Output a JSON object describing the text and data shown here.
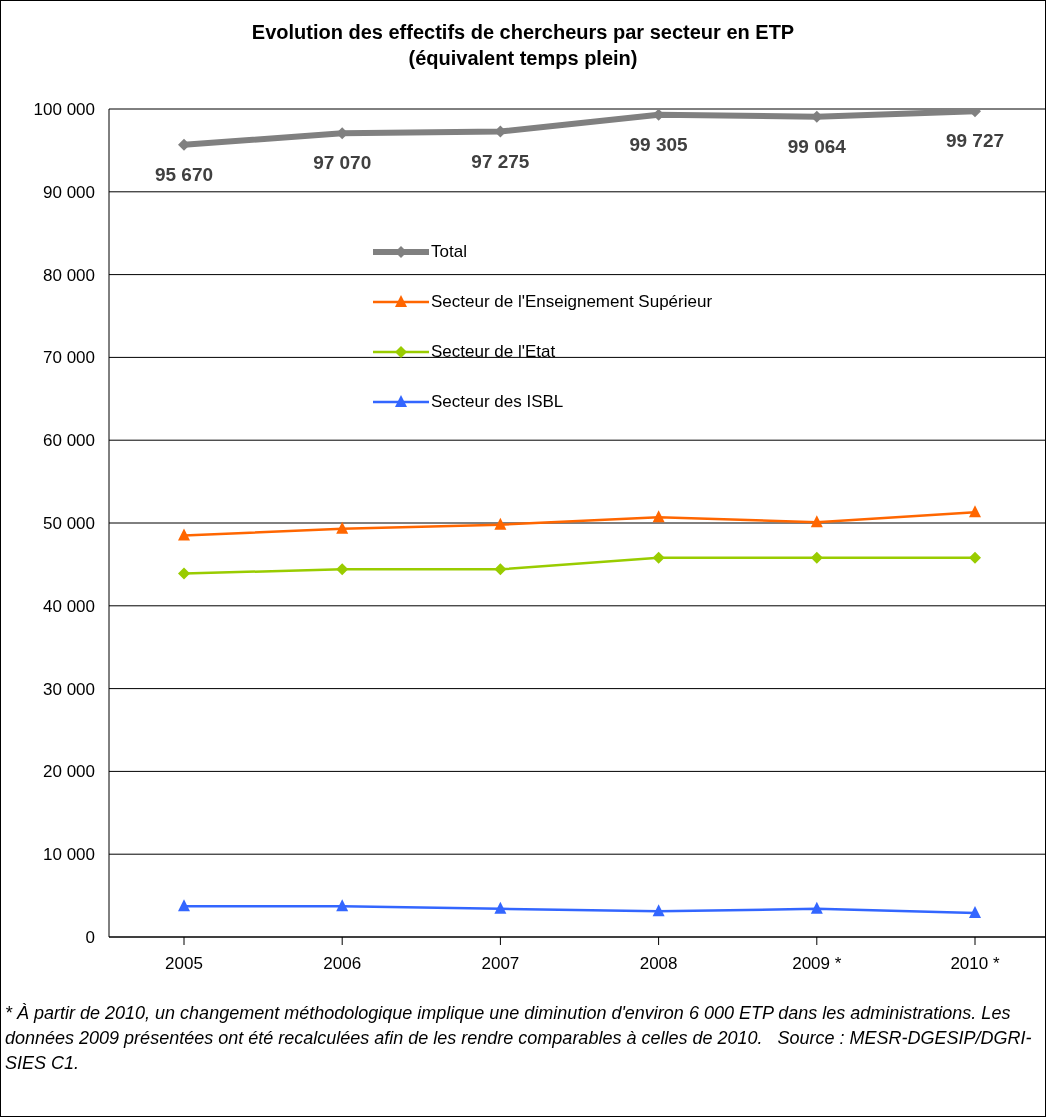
{
  "chart_data": {
    "type": "line",
    "title": "Evolution des effectifs de chercheurs par secteur en ETP",
    "subtitle": "(équivalent temps plein)",
    "categories": [
      "2005",
      "2006",
      "2007",
      "2008",
      "2009 *",
      "2010 *"
    ],
    "series": [
      {
        "name": "Total",
        "color": "#808080",
        "marker": "diamond",
        "values": [
          95670,
          97070,
          97275,
          99305,
          99064,
          99727
        ],
        "value_labels": [
          "95 670",
          "97 070",
          "97 275",
          "99 305",
          "99 064",
          "99 727"
        ]
      },
      {
        "name": "Secteur de l'Enseignement Supérieur",
        "color": "#ff6600",
        "marker": "triangle",
        "values": [
          48500,
          49300,
          49800,
          50700,
          50100,
          51300
        ]
      },
      {
        "name": "Secteur de l'Etat",
        "color": "#99cc00",
        "marker": "diamond",
        "values": [
          43900,
          44400,
          44400,
          45800,
          45800,
          45800
        ]
      },
      {
        "name": "Secteur des ISBL",
        "color": "#3366ff",
        "marker": "triangle",
        "values": [
          3700,
          3700,
          3400,
          3100,
          3400,
          2900
        ]
      }
    ],
    "ylim": [
      0,
      100000
    ],
    "yticks": [
      {
        "value": 0,
        "label": "0"
      },
      {
        "value": 10000,
        "label": "10 000"
      },
      {
        "value": 20000,
        "label": "20 000"
      },
      {
        "value": 30000,
        "label": "30 000"
      },
      {
        "value": 40000,
        "label": "40 000"
      },
      {
        "value": 50000,
        "label": "50 000"
      },
      {
        "value": 60000,
        "label": "60 000"
      },
      {
        "value": 70000,
        "label": "70 000"
      },
      {
        "value": 80000,
        "label": "80 000"
      },
      {
        "value": 90000,
        "label": "90 000"
      },
      {
        "value": 100000,
        "label": "100 000"
      }
    ],
    "grid": "y",
    "legend": "top",
    "annotations": [
      "* À partir de 2010, un changement méthodologique implique une diminution d'environ 6 000 ETP dans les administrations. Les données 2009 présentées ont été recalculées afin de les rendre comparables à celles de 2010.   Source : MESR-DGESIP/DGRI-SIES C1."
    ]
  }
}
